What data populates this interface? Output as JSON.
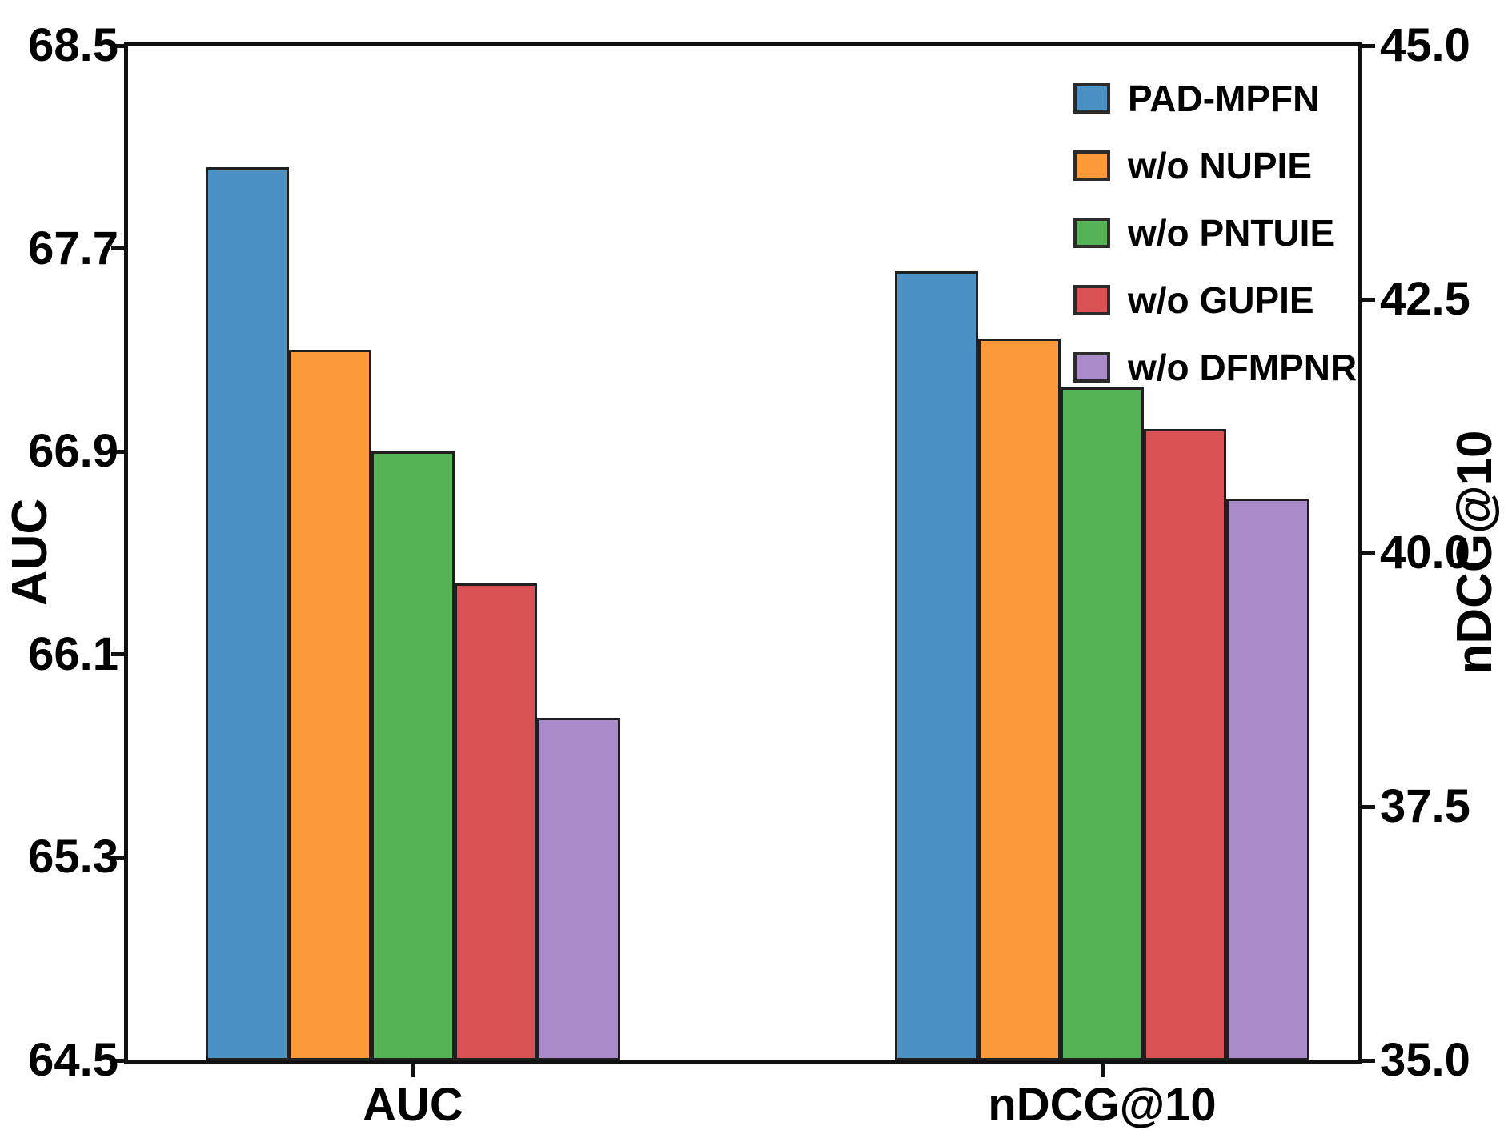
{
  "chart_data": {
    "type": "bar",
    "title": "",
    "categories": [
      "AUC",
      "nDCG@10"
    ],
    "series": [
      {
        "name": "PAD-MPFN",
        "color": "#4C91C3",
        "values": [
          68.02,
          42.78
        ]
      },
      {
        "name": "w/o NUPIE",
        "color": "#FC9939",
        "values": [
          67.3,
          42.11
        ]
      },
      {
        "name": "w/o PNTUIE",
        "color": "#55B255",
        "values": [
          66.9,
          41.63
        ]
      },
      {
        "name": "w/o GUPIE",
        "color": "#DA5153",
        "values": [
          66.38,
          41.22
        ]
      },
      {
        "name": "w/o DFMPNR",
        "color": "#A98BC9",
        "values": [
          65.85,
          40.54
        ]
      }
    ],
    "axes": {
      "left": {
        "label": "AUC",
        "min": 64.5,
        "max": 68.5,
        "ticks": [
          "68.5",
          "67.7",
          "66.9",
          "66.1",
          "65.3",
          "64.5"
        ]
      },
      "right": {
        "label": "nDCG@10",
        "min": 35.0,
        "max": 45.0,
        "ticks": [
          "45.0",
          "42.5",
          "40.0",
          "37.5",
          "35.0"
        ]
      }
    },
    "legend": {
      "position": "upper right"
    },
    "grid": false,
    "styles": {
      "bar_edge_color": "#1f1f1f",
      "spine_color": "#111111",
      "text_color": "#000000",
      "background": "#ffffff"
    }
  }
}
